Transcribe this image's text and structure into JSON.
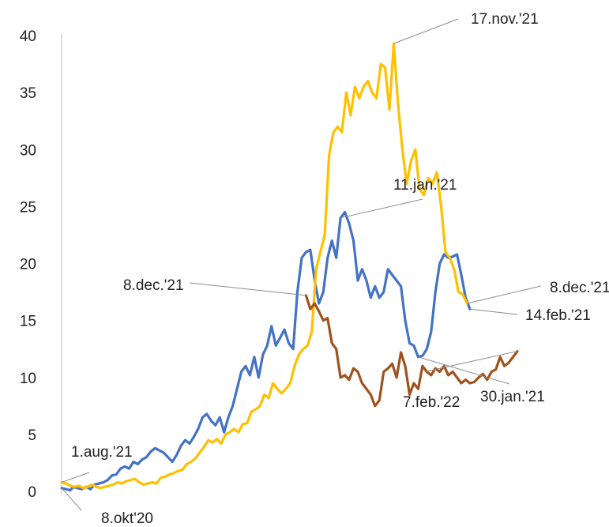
{
  "chart_data": {
    "type": "line",
    "title": "",
    "xlabel": "",
    "ylabel": "",
    "ylim": [
      0,
      40
    ],
    "yticks": [
      "0",
      "5",
      "10",
      "15",
      "20",
      "25",
      "30",
      "35",
      "40"
    ],
    "grid": false,
    "legend": "none",
    "x": "days since the start of each wave (shared x axis, no tick labels shown)",
    "series": [
      {
        "key": "wave_oct20",
        "color": "#4472C4",
        "points": [
          [
            0,
            0.3
          ],
          [
            3,
            0.2
          ],
          [
            6,
            0.1
          ],
          [
            8,
            0.4
          ],
          [
            11,
            0.3
          ],
          [
            14,
            0.2
          ],
          [
            17,
            0.4
          ],
          [
            20,
            0.2
          ],
          [
            23,
            0.6
          ],
          [
            26,
            0.7
          ],
          [
            29,
            0.8
          ],
          [
            32,
            1.0
          ],
          [
            35,
            1.4
          ],
          [
            38,
            1.5
          ],
          [
            41,
            2.0
          ],
          [
            44,
            2.2
          ],
          [
            47,
            2.0
          ],
          [
            50,
            2.6
          ],
          [
            53,
            2.4
          ],
          [
            56,
            2.8
          ],
          [
            59,
            3.0
          ],
          [
            62,
            3.5
          ],
          [
            65,
            3.8
          ],
          [
            68,
            3.6
          ],
          [
            71,
            3.4
          ],
          [
            74,
            3.0
          ],
          [
            77,
            2.6
          ],
          [
            80,
            3.2
          ],
          [
            83,
            4.0
          ],
          [
            86,
            4.5
          ],
          [
            89,
            4.2
          ],
          [
            92,
            4.8
          ],
          [
            95,
            5.5
          ],
          [
            98,
            6.5
          ],
          [
            101,
            6.8
          ],
          [
            104,
            6.2
          ],
          [
            107,
            5.8
          ],
          [
            110,
            6.5
          ],
          [
            113,
            5.2
          ],
          [
            116,
            6.5
          ],
          [
            119,
            7.5
          ],
          [
            122,
            9.0
          ],
          [
            125,
            10.5
          ],
          [
            128,
            11.0
          ],
          [
            131,
            10.2
          ],
          [
            134,
            11.8
          ],
          [
            137,
            10.0
          ],
          [
            140,
            12.0
          ],
          [
            143,
            12.8
          ],
          [
            146,
            14.5
          ],
          [
            149,
            12.8
          ],
          [
            152,
            13.5
          ],
          [
            155,
            14.2
          ],
          [
            158,
            13.0
          ],
          [
            161,
            12.5
          ],
          [
            164,
            17.5
          ],
          [
            167,
            20.5
          ],
          [
            170,
            21.0
          ],
          [
            173,
            21.2
          ],
          [
            176,
            18.5
          ],
          [
            179,
            16.5
          ],
          [
            182,
            17.5
          ],
          [
            185,
            20.5
          ],
          [
            188,
            22.0
          ],
          [
            191,
            20.5
          ],
          [
            194,
            24.0
          ],
          [
            197,
            24.5
          ],
          [
            200,
            23.5
          ],
          [
            203,
            22.0
          ],
          [
            206,
            18.5
          ],
          [
            209,
            19.5
          ],
          [
            212,
            18.5
          ],
          [
            215,
            17.0
          ],
          [
            218,
            18.0
          ],
          [
            221,
            17.0
          ],
          [
            224,
            17.5
          ],
          [
            227,
            19.5
          ],
          [
            230,
            19.0
          ],
          [
            233,
            18.5
          ],
          [
            236,
            18.0
          ],
          [
            239,
            15.0
          ],
          [
            242,
            13.0
          ],
          [
            245,
            12.8
          ],
          [
            248,
            11.8
          ],
          [
            251,
            11.9
          ],
          [
            254,
            12.5
          ],
          [
            257,
            14.0
          ],
          [
            260,
            17.5
          ],
          [
            263,
            20.0
          ],
          [
            266,
            20.8
          ],
          [
            269,
            20.5
          ],
          [
            272,
            20.6
          ],
          [
            275,
            20.8
          ],
          [
            278,
            19.0
          ],
          [
            281,
            17.0
          ],
          [
            284,
            16.0
          ]
        ],
        "annotations": [
          {
            "text": "8.okt'20",
            "index": 0
          },
          {
            "text": "11.jan.'21",
            "index": 65
          },
          {
            "text": "30.jan.'21",
            "index": 83
          },
          {
            "text": "14.feb.'21",
            "index": 95
          }
        ]
      },
      {
        "key": "wave_aug21",
        "color": "#FFC000",
        "points": [
          [
            0,
            0.8
          ],
          [
            3,
            0.7
          ],
          [
            6,
            0.5
          ],
          [
            9,
            0.4
          ],
          [
            12,
            0.5
          ],
          [
            15,
            0.3
          ],
          [
            18,
            0.4
          ],
          [
            21,
            0.6
          ],
          [
            24,
            0.4
          ],
          [
            27,
            0.3
          ],
          [
            30,
            0.4
          ],
          [
            33,
            0.5
          ],
          [
            36,
            0.6
          ],
          [
            39,
            0.8
          ],
          [
            42,
            0.7
          ],
          [
            45,
            0.9
          ],
          [
            48,
            1.0
          ],
          [
            51,
            1.1
          ],
          [
            54,
            0.8
          ],
          [
            57,
            0.6
          ],
          [
            60,
            0.7
          ],
          [
            63,
            0.8
          ],
          [
            66,
            0.7
          ],
          [
            69,
            1.2
          ],
          [
            72,
            1.3
          ],
          [
            75,
            1.5
          ],
          [
            78,
            1.6
          ],
          [
            81,
            1.8
          ],
          [
            84,
            1.9
          ],
          [
            87,
            2.4
          ],
          [
            90,
            2.6
          ],
          [
            93,
            2.9
          ],
          [
            96,
            3.4
          ],
          [
            99,
            3.9
          ],
          [
            102,
            4.5
          ],
          [
            105,
            4.3
          ],
          [
            108,
            4.6
          ],
          [
            111,
            4.2
          ],
          [
            114,
            5.0
          ],
          [
            117,
            5.2
          ],
          [
            120,
            5.5
          ],
          [
            123,
            5.2
          ],
          [
            126,
            5.9
          ],
          [
            129,
            6.0
          ],
          [
            132,
            7.0
          ],
          [
            135,
            7.2
          ],
          [
            138,
            7.5
          ],
          [
            141,
            8.5
          ],
          [
            144,
            8.2
          ],
          [
            147,
            9.5
          ],
          [
            150,
            9.0
          ],
          [
            153,
            8.6
          ],
          [
            156,
            9.0
          ],
          [
            159,
            9.5
          ],
          [
            162,
            11.0
          ],
          [
            165,
            12.0
          ],
          [
            168,
            12.5
          ],
          [
            171,
            12.8
          ],
          [
            174,
            14.0
          ],
          [
            177,
            19.5
          ],
          [
            180,
            21.0
          ],
          [
            183,
            22.5
          ],
          [
            186,
            29.5
          ],
          [
            189,
            31.5
          ],
          [
            192,
            32.0
          ],
          [
            195,
            31.5
          ],
          [
            198,
            35.0
          ],
          [
            201,
            33.0
          ],
          [
            204,
            35.5
          ],
          [
            207,
            34.5
          ],
          [
            210,
            35.5
          ],
          [
            213,
            36.0
          ],
          [
            216,
            35.0
          ],
          [
            219,
            34.5
          ],
          [
            222,
            37.5
          ],
          [
            225,
            37.2
          ],
          [
            228,
            33.5
          ],
          [
            231,
            39.3
          ],
          [
            234,
            34.0
          ],
          [
            237,
            30.0
          ],
          [
            240,
            27.0
          ],
          [
            243,
            29.0
          ],
          [
            246,
            30.0
          ],
          [
            249,
            26.5
          ],
          [
            252,
            26.0
          ],
          [
            255,
            27.5
          ],
          [
            258,
            27.0
          ],
          [
            261,
            28.0
          ],
          [
            264,
            25.0
          ],
          [
            267,
            21.0
          ],
          [
            270,
            20.5
          ],
          [
            273,
            19.5
          ],
          [
            276,
            17.5
          ],
          [
            279,
            17.3
          ],
          [
            282,
            16.5
          ]
        ],
        "annotations": [
          {
            "text": "1.aug.'21",
            "index": 0
          },
          {
            "text": "17.nov.'21",
            "index": 77
          },
          {
            "text": "8.dec.'21",
            "index": 94
          }
        ]
      },
      {
        "key": "wave_dec21",
        "color": "#A0521E",
        "points": [
          [
            170,
            17.2
          ],
          [
            173,
            16.0
          ],
          [
            176,
            16.5
          ],
          [
            179,
            15.8
          ],
          [
            182,
            15.0
          ],
          [
            185,
            15.2
          ],
          [
            188,
            13.0
          ],
          [
            191,
            12.5
          ],
          [
            194,
            10.0
          ],
          [
            197,
            10.2
          ],
          [
            200,
            9.8
          ],
          [
            203,
            10.8
          ],
          [
            206,
            10.5
          ],
          [
            209,
            9.5
          ],
          [
            212,
            9.0
          ],
          [
            215,
            8.5
          ],
          [
            218,
            7.5
          ],
          [
            221,
            8.0
          ],
          [
            224,
            10.5
          ],
          [
            227,
            10.8
          ],
          [
            230,
            11.2
          ],
          [
            233,
            10.0
          ],
          [
            236,
            12.2
          ],
          [
            239,
            11.0
          ],
          [
            242,
            8.5
          ],
          [
            245,
            9.5
          ],
          [
            248,
            9.0
          ],
          [
            251,
            11.0
          ],
          [
            254,
            10.5
          ],
          [
            257,
            10.2
          ],
          [
            260,
            10.8
          ],
          [
            263,
            10.5
          ],
          [
            266,
            11.0
          ],
          [
            269,
            10.2
          ],
          [
            272,
            10.5
          ],
          [
            275,
            10.0
          ],
          [
            278,
            9.5
          ],
          [
            281,
            9.8
          ],
          [
            284,
            9.5
          ],
          [
            287,
            9.6
          ],
          [
            290,
            10.0
          ],
          [
            293,
            10.3
          ],
          [
            296,
            9.8
          ],
          [
            299,
            10.5
          ],
          [
            302,
            10.7
          ],
          [
            305,
            11.8
          ],
          [
            308,
            11.0
          ],
          [
            311,
            11.3
          ],
          [
            314,
            11.8
          ],
          [
            317,
            12.3
          ]
        ],
        "annotations": [
          {
            "text": "8.dec.'21",
            "index": 0
          },
          {
            "text": "7.feb.'22",
            "index": 49
          }
        ]
      }
    ]
  }
}
